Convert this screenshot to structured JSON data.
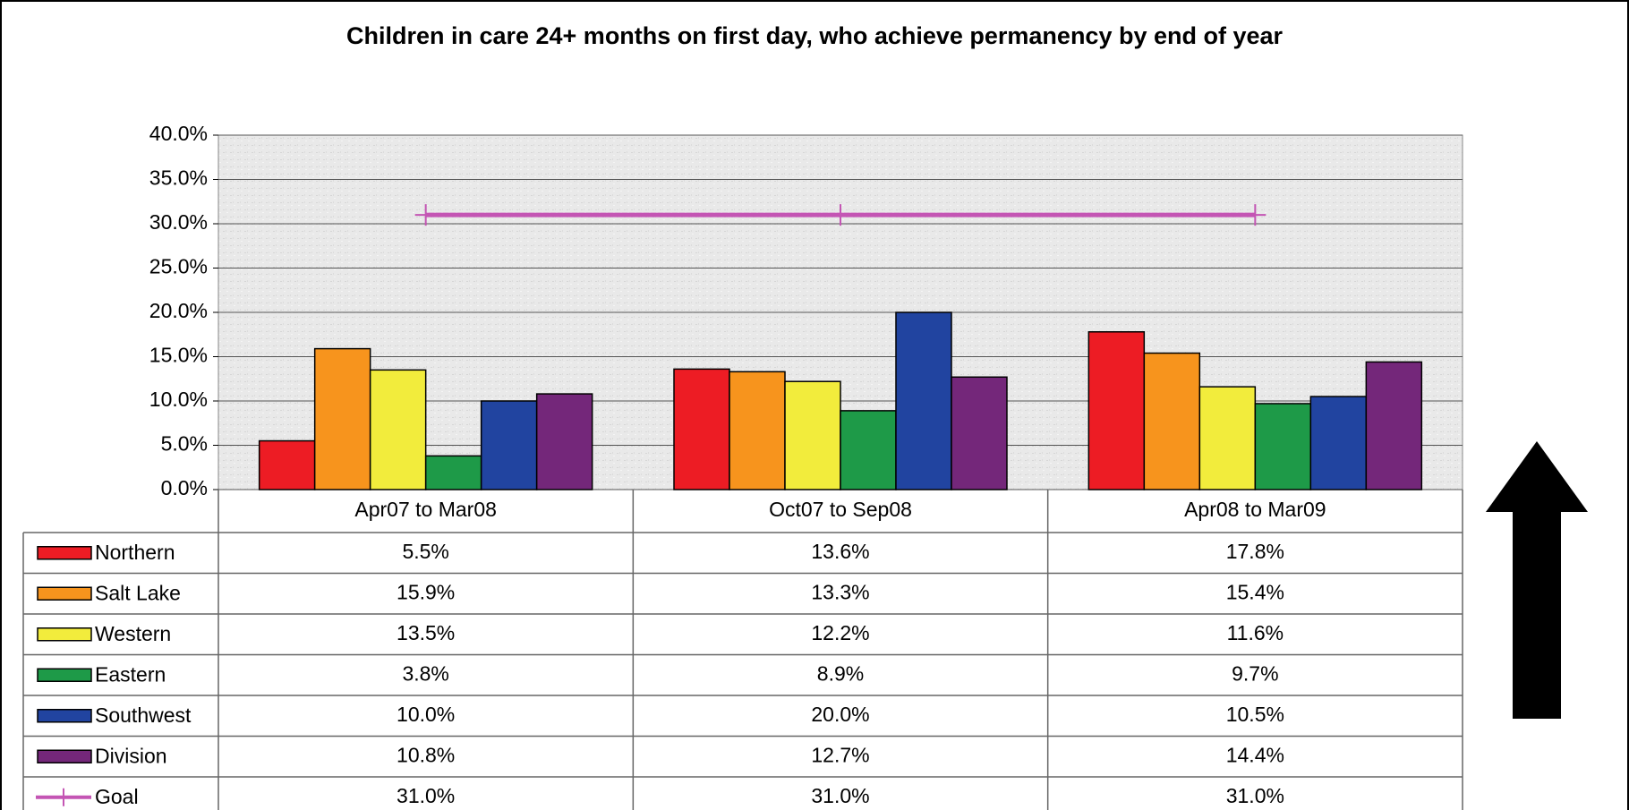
{
  "chart_data": {
    "type": "bar",
    "title": "Children in care 24+ months on first day, who achieve permanency by end of year",
    "categories": [
      "Apr07 to Mar08",
      "Oct07 to Sep08",
      "Apr08 to Mar09"
    ],
    "ylim": [
      0,
      40
    ],
    "yticks": [
      {
        "value": 0,
        "label": "0.0%"
      },
      {
        "value": 5,
        "label": "5.0%"
      },
      {
        "value": 10,
        "label": "10.0%"
      },
      {
        "value": 15,
        "label": "15.0%"
      },
      {
        "value": 20,
        "label": "20.0%"
      },
      {
        "value": 25,
        "label": "25.0%"
      },
      {
        "value": 30,
        "label": "30.0%"
      },
      {
        "value": 35,
        "label": "35.0%"
      },
      {
        "value": 40,
        "label": "40.0%"
      }
    ],
    "grid": true,
    "series": [
      {
        "name": "Northern",
        "color": "#ed1c24",
        "values": [
          5.5,
          13.6,
          17.8
        ],
        "value_labels": [
          "5.5%",
          "13.6%",
          "17.8%"
        ]
      },
      {
        "name": "Salt Lake",
        "color": "#f7941d",
        "values": [
          15.9,
          13.3,
          15.4
        ],
        "value_labels": [
          "15.9%",
          "13.3%",
          "15.4%"
        ]
      },
      {
        "name": "Western",
        "color": "#f2ec3c",
        "values": [
          13.5,
          12.2,
          11.6
        ],
        "value_labels": [
          "13.5%",
          "12.2%",
          "11.6%"
        ]
      },
      {
        "name": "Eastern",
        "color": "#1e9a48",
        "values": [
          3.8,
          8.9,
          9.7
        ],
        "value_labels": [
          "3.8%",
          "8.9%",
          "9.7%"
        ]
      },
      {
        "name": "Southwest",
        "color": "#2144a0",
        "values": [
          10.0,
          20.0,
          10.5
        ],
        "value_labels": [
          "10.0%",
          "20.0%",
          "10.5%"
        ]
      },
      {
        "name": "Division",
        "color": "#74277a",
        "values": [
          10.8,
          12.7,
          14.4
        ],
        "value_labels": [
          "10.8%",
          "12.7%",
          "14.4%"
        ]
      },
      {
        "name": "Goal",
        "type": "line",
        "color": "#c455b4",
        "values": [
          31.0,
          31.0,
          31.0
        ],
        "value_labels": [
          "31.0%",
          "31.0%",
          "31.0%"
        ]
      }
    ]
  }
}
